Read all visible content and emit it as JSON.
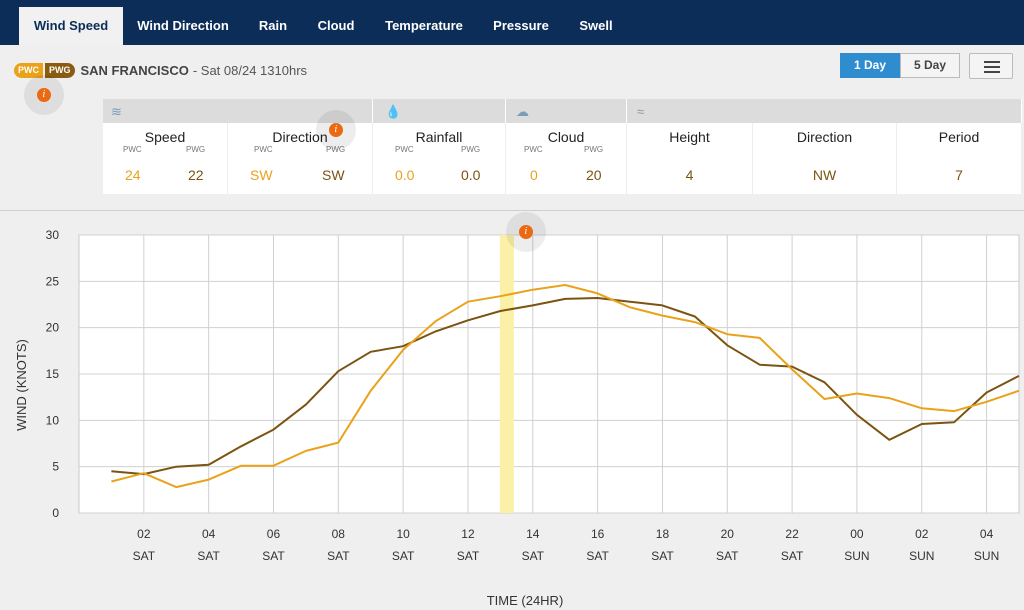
{
  "tabs": [
    {
      "label": "Wind Speed",
      "active": true
    },
    {
      "label": "Wind Direction",
      "active": false
    },
    {
      "label": "Rain",
      "active": false
    },
    {
      "label": "Cloud",
      "active": false
    },
    {
      "label": "Temperature",
      "active": false
    },
    {
      "label": "Pressure",
      "active": false
    },
    {
      "label": "Swell",
      "active": false
    }
  ],
  "location": {
    "badge_pwc": "PWC",
    "badge_pwg": "PWG",
    "name": "SAN FRANCISCO",
    "date": "- Sat 08/24 1310hrs"
  },
  "info_icon": "i",
  "range_buttons": [
    {
      "label": "1 Day",
      "active": true
    },
    {
      "label": "5 Day",
      "active": false
    }
  ],
  "menu_icon": "hamburger-icon",
  "summary": {
    "wind_icon": "wind-icon",
    "rain_icon": "raindrop-icon",
    "cloud_icon": "cloud-icon",
    "swell_icon": "wave-icon",
    "speed": {
      "title": "Speed",
      "sub_pwc": "PWC",
      "sub_pwg": "PWG",
      "pwc": "24",
      "pwg": "22"
    },
    "direction": {
      "title": "Direction",
      "sub_pwc": "PWC",
      "sub_pwg": "PWG",
      "pwc": "SW",
      "pwg": "SW"
    },
    "rainfall": {
      "title": "Rainfall",
      "sub_pwc": "PWC",
      "sub_pwg": "PWG",
      "pwc": "0.0",
      "pwg": "0.0"
    },
    "cloud": {
      "title": "Cloud",
      "sub_pwc": "PWC",
      "sub_pwg": "PWG",
      "pwc": "0",
      "pwg": "20"
    },
    "height": {
      "title": "Height",
      "value": "4"
    },
    "swell_direction": {
      "title": "Direction",
      "value": "NW"
    },
    "period": {
      "title": "Period",
      "value": "7"
    }
  },
  "colors": {
    "pwc": "#e9a21a",
    "pwg": "#7a5410",
    "nav": "#0b2d57",
    "highlight": "#fbf0a8",
    "accent": "#2f8ccf"
  },
  "chart_data": {
    "type": "line",
    "ylabel": "WIND (KNOTS)",
    "xlabel": "TIME (24HR)",
    "ylim": [
      0,
      30
    ],
    "yticks": [
      0,
      5,
      10,
      15,
      20,
      25,
      30
    ],
    "grid": true,
    "x_hours": [
      1,
      2,
      3,
      4,
      5,
      6,
      7,
      8,
      9,
      10,
      11,
      12,
      13,
      14,
      15,
      16,
      17,
      18,
      19,
      20,
      21,
      22,
      23,
      24,
      25,
      26,
      27,
      28,
      29
    ],
    "tick_labels": [
      {
        "hour": "02",
        "day": "SAT"
      },
      {
        "hour": "04",
        "day": "SAT"
      },
      {
        "hour": "06",
        "day": "SAT"
      },
      {
        "hour": "08",
        "day": "SAT"
      },
      {
        "hour": "10",
        "day": "SAT"
      },
      {
        "hour": "12",
        "day": "SAT"
      },
      {
        "hour": "14",
        "day": "SAT"
      },
      {
        "hour": "16",
        "day": "SAT"
      },
      {
        "hour": "18",
        "day": "SAT"
      },
      {
        "hour": "20",
        "day": "SAT"
      },
      {
        "hour": "22",
        "day": "SAT"
      },
      {
        "hour": "00",
        "day": "SUN"
      },
      {
        "hour": "02",
        "day": "SUN"
      },
      {
        "hour": "04",
        "day": "SUN"
      }
    ],
    "highlight_hour": 13.2,
    "series": [
      {
        "name": "PWG",
        "color": "#7a5410",
        "values": [
          4.5,
          4.2,
          5.0,
          5.2,
          7.2,
          9.0,
          11.7,
          15.3,
          17.4,
          18.0,
          19.6,
          20.8,
          21.8,
          22.4,
          23.1,
          23.2,
          22.8,
          22.4,
          21.2,
          18.1,
          16.0,
          15.8,
          14.1,
          10.6,
          7.9,
          9.6,
          9.8,
          13.0,
          14.8
        ]
      },
      {
        "name": "PWC",
        "color": "#e9a21a",
        "values": [
          3.4,
          4.3,
          2.8,
          3.6,
          5.1,
          5.1,
          6.7,
          7.6,
          13.2,
          17.6,
          20.7,
          22.8,
          23.4,
          24.1,
          24.6,
          23.7,
          22.2,
          21.3,
          20.6,
          19.3,
          18.9,
          15.5,
          12.3,
          12.9,
          12.4,
          11.3,
          11.0,
          12.0,
          13.2
        ]
      }
    ]
  }
}
